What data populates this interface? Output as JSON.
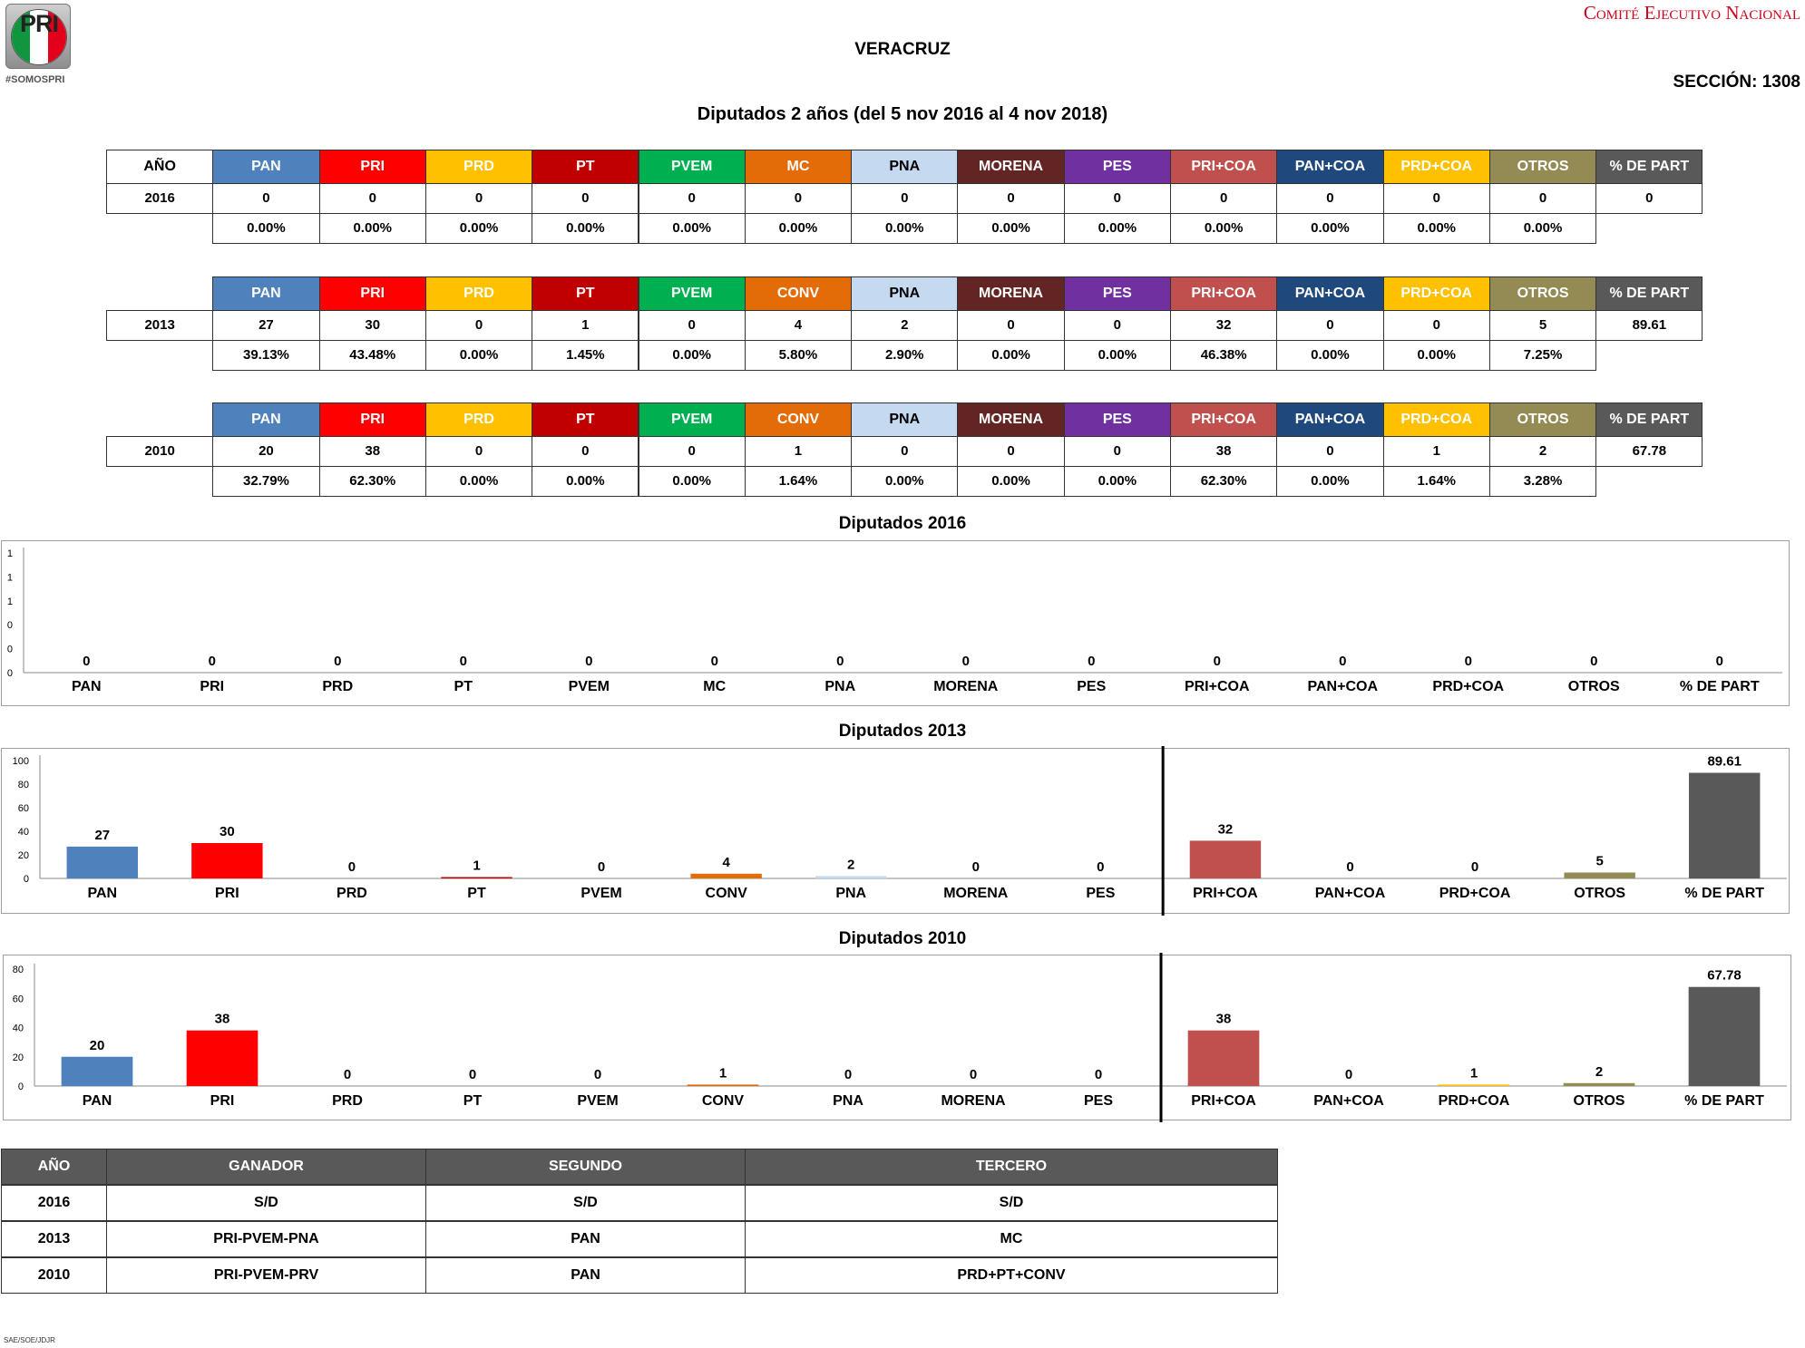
{
  "header": {
    "logo_text": "PRI",
    "hashtag": "#SOMOSPRI",
    "organization": "Comité Ejecutivo Nacional",
    "state": "VERACRUZ",
    "seccion": "SECCIÓN: 1308",
    "subtitle": "Diputados 2 años (del 5 nov 2016 al 4 nov 2018)"
  },
  "colors": {
    "PAN": "#4f81bd",
    "PRI": "#ff0000",
    "PRD": "#ffc000",
    "PT": "#c00000",
    "PVEM": "#00b050",
    "MC": "#e36c09",
    "CONV": "#e36c09",
    "PNA": "#c5d9f1",
    "MORENA": "#632523",
    "PES": "#7030a0",
    "PRI+COA": "#c0504d",
    "PAN+COA": "#1f497d",
    "PRD+COA": "#ffc000",
    "OTROS": "#948a54",
    "% DE PART": "#595959"
  },
  "tables": [
    {
      "anio_header": "AÑO",
      "year": "2016",
      "parties": [
        "PAN",
        "PRI",
        "PRD",
        "PT",
        "PVEM",
        "MC",
        "PNA",
        "MORENA",
        "PES",
        "PRI+COA",
        "PAN+COA",
        "PRD+COA",
        "OTROS",
        "% DE PART"
      ],
      "values": [
        "0",
        "0",
        "0",
        "0",
        "0",
        "0",
        "0",
        "0",
        "0",
        "0",
        "0",
        "0",
        "0",
        "0"
      ],
      "percents": [
        "0.00%",
        "0.00%",
        "0.00%",
        "0.00%",
        "0.00%",
        "0.00%",
        "0.00%",
        "0.00%",
        "0.00%",
        "0.00%",
        "0.00%",
        "0.00%",
        "0.00%"
      ]
    },
    {
      "anio_header": "",
      "year": "2013",
      "parties": [
        "PAN",
        "PRI",
        "PRD",
        "PT",
        "PVEM",
        "CONV",
        "PNA",
        "MORENA",
        "PES",
        "PRI+COA",
        "PAN+COA",
        "PRD+COA",
        "OTROS",
        "% DE PART"
      ],
      "values": [
        "27",
        "30",
        "0",
        "1",
        "0",
        "4",
        "2",
        "0",
        "0",
        "32",
        "0",
        "0",
        "5",
        "89.61"
      ],
      "percents": [
        "39.13%",
        "43.48%",
        "0.00%",
        "1.45%",
        "0.00%",
        "5.80%",
        "2.90%",
        "0.00%",
        "0.00%",
        "46.38%",
        "0.00%",
        "0.00%",
        "7.25%"
      ]
    },
    {
      "anio_header": "",
      "year": "2010",
      "parties": [
        "PAN",
        "PRI",
        "PRD",
        "PT",
        "PVEM",
        "CONV",
        "PNA",
        "MORENA",
        "PES",
        "PRI+COA",
        "PAN+COA",
        "PRD+COA",
        "OTROS",
        "% DE PART"
      ],
      "values": [
        "20",
        "38",
        "0",
        "0",
        "0",
        "1",
        "0",
        "0",
        "0",
        "38",
        "0",
        "1",
        "2",
        "67.78"
      ],
      "percents": [
        "32.79%",
        "62.30%",
        "0.00%",
        "0.00%",
        "0.00%",
        "1.64%",
        "0.00%",
        "0.00%",
        "0.00%",
        "62.30%",
        "0.00%",
        "1.64%",
        "3.28%"
      ]
    }
  ],
  "chart_data": [
    {
      "type": "bar",
      "title": "Diputados  2016",
      "categories": [
        "PAN",
        "PRI",
        "PRD",
        "PT",
        "PVEM",
        "MC",
        "PNA",
        "MORENA",
        "PES",
        "PRI+COA",
        "PAN+COA",
        "PRD+COA",
        "OTROS",
        "% DE PART"
      ],
      "values": [
        0,
        0,
        0,
        0,
        0,
        0,
        0,
        0,
        0,
        0,
        0,
        0,
        0,
        0
      ],
      "yticks": [
        "0",
        "0",
        "0",
        "1",
        "1",
        "1"
      ],
      "ylim": [
        0,
        1
      ],
      "divider_after": null
    },
    {
      "type": "bar",
      "title": "Diputados 2013",
      "categories": [
        "PAN",
        "PRI",
        "PRD",
        "PT",
        "PVEM",
        "CONV",
        "PNA",
        "MORENA",
        "PES",
        "PRI+COA",
        "PAN+COA",
        "PRD+COA",
        "OTROS",
        "% DE PART"
      ],
      "values": [
        27,
        30,
        0,
        1,
        0,
        4,
        2,
        0,
        0,
        32,
        0,
        0,
        5,
        89.61
      ],
      "yticks": [
        "0",
        "20",
        "40",
        "60",
        "80",
        "100"
      ],
      "ylim": [
        0,
        100
      ],
      "divider_after": 9
    },
    {
      "type": "bar",
      "title": "Diputados 2010",
      "categories": [
        "PAN",
        "PRI",
        "PRD",
        "PT",
        "PVEM",
        "CONV",
        "PNA",
        "MORENA",
        "PES",
        "PRI+COA",
        "PAN+COA",
        "PRD+COA",
        "OTROS",
        "% DE PART"
      ],
      "values": [
        20,
        38,
        0,
        0,
        0,
        1,
        0,
        0,
        0,
        38,
        0,
        1,
        2,
        67.78
      ],
      "yticks": [
        "0",
        "20",
        "40",
        "60",
        "80"
      ],
      "ylim": [
        0,
        80
      ],
      "divider_after": 9
    }
  ],
  "winners": {
    "headers": [
      "AÑO",
      "GANADOR",
      "SEGUNDO",
      "TERCERO"
    ],
    "rows": [
      [
        "2016",
        "S/D",
        "S/D",
        "S/D"
      ],
      [
        "2013",
        "PRI-PVEM-PNA",
        "PAN",
        "MC"
      ],
      [
        "2010",
        "PRI-PVEM-PRV",
        "PAN",
        "PRD+PT+CONV"
      ]
    ]
  },
  "footer": "SAE/SOE/JDJR"
}
